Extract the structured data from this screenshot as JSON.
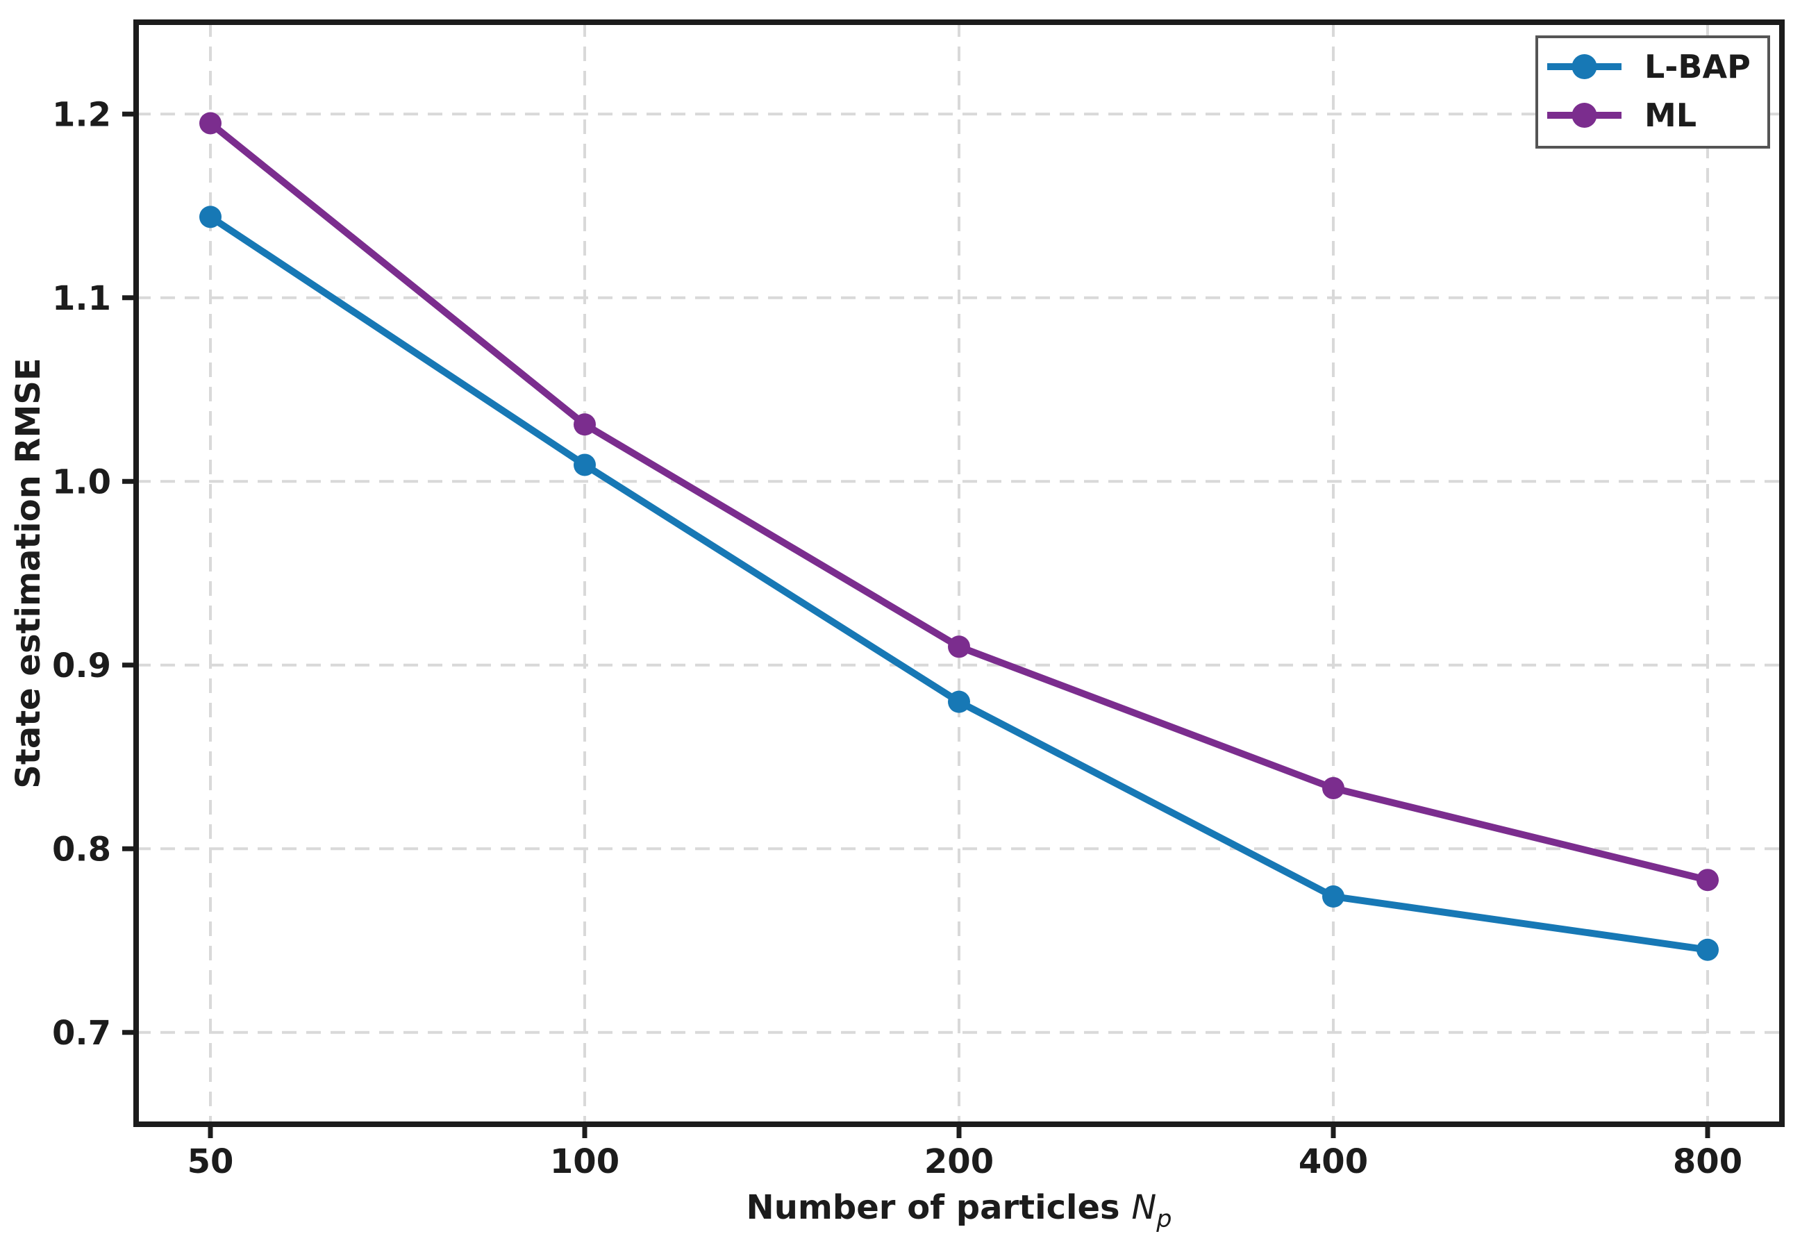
{
  "figure": {
    "background": "#ffffff",
    "axis_color": "#1c1c1c",
    "grid_color": "#d9d9d9"
  },
  "chart_data": {
    "type": "line",
    "xlabel_prefix": "Number of particles ",
    "xlabel_var": "N",
    "xlabel_var_sub": "p",
    "xlabel_plain": "Number of particles N_p",
    "ylabel": "State estimation RMSE",
    "x_scale": "log2",
    "categories": [
      50,
      100,
      200,
      400,
      800
    ],
    "x_tick_labels": [
      "50",
      "100",
      "200",
      "400",
      "800"
    ],
    "y_ticks": [
      0.7,
      0.8,
      0.9,
      1.0,
      1.1,
      1.2
    ],
    "y_tick_labels": [
      "0.7",
      "0.8",
      "0.9",
      "1.0",
      "1.1",
      "1.2"
    ],
    "ylim": [
      0.65,
      1.25
    ],
    "grid": {
      "show": true,
      "style": "dashed",
      "color": "#d9d9d9"
    },
    "legend": {
      "position": "upper-right",
      "border_color": "#555555",
      "background": "#ffffff",
      "entries": [
        "L-BAP",
        "ML"
      ]
    },
    "series": [
      {
        "name": "L-BAP",
        "color": "#1778b5",
        "marker": "circle",
        "values": [
          1.144,
          1.009,
          0.88,
          0.774,
          0.745
        ]
      },
      {
        "name": "ML",
        "color": "#7b2d8e",
        "marker": "circle",
        "values": [
          1.195,
          1.031,
          0.91,
          0.833,
          0.783
        ]
      }
    ]
  }
}
